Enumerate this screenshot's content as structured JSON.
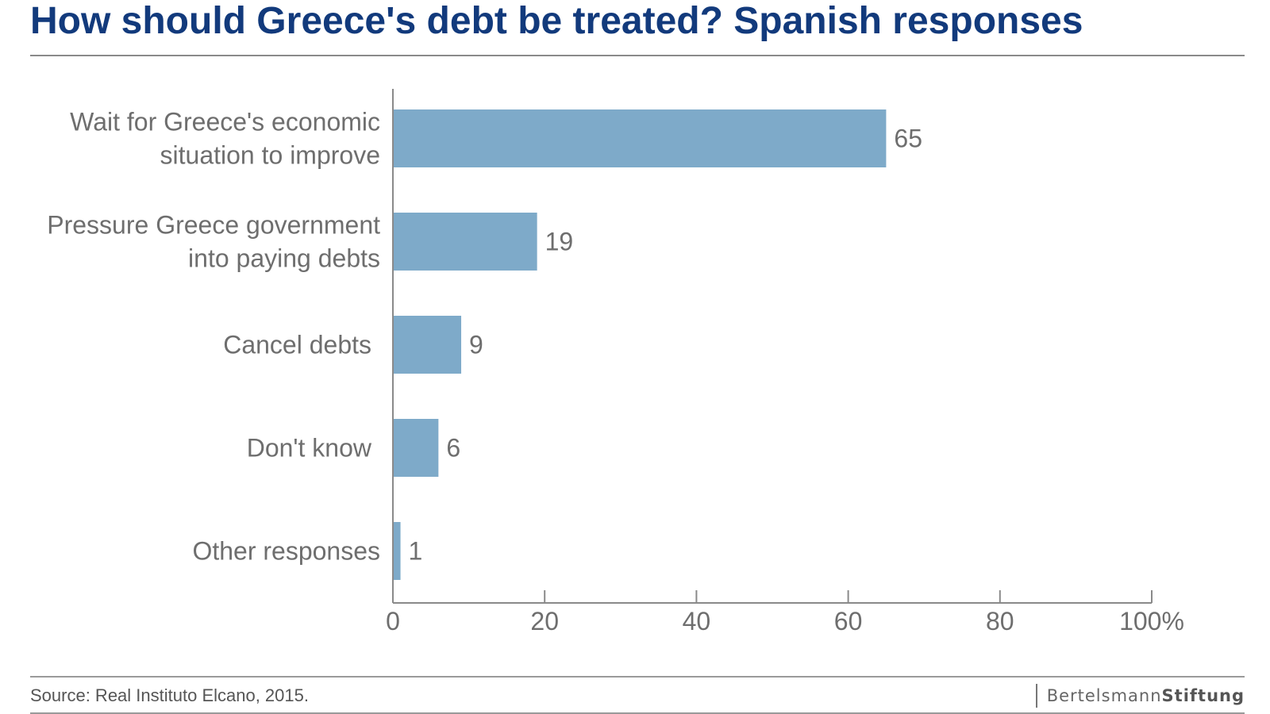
{
  "title": "How should Greece's debt be treated? Spanish responses",
  "source": "Source: Real Instituto Elcano, 2015.",
  "brand": {
    "part1": "Bertelsmann",
    "part2": "Stiftung"
  },
  "colors": {
    "bar": "#7eaac9",
    "title": "#123a7c",
    "label": "#6e6e6e",
    "axis": "#8a8a8a"
  },
  "chart_data": {
    "type": "bar",
    "orientation": "horizontal",
    "categories": [
      [
        "Wait for Greece's economic",
        "situation to improve"
      ],
      [
        "Pressure Greece government",
        "into paying debts"
      ],
      [
        "Cancel debts"
      ],
      [
        "Don't know"
      ],
      [
        "Other responses"
      ]
    ],
    "values": [
      65,
      19,
      9,
      6,
      1
    ],
    "xlim": [
      0,
      100
    ],
    "xticks": [
      "0",
      "20",
      "40",
      "60",
      "80",
      "100%"
    ],
    "grid": false
  }
}
